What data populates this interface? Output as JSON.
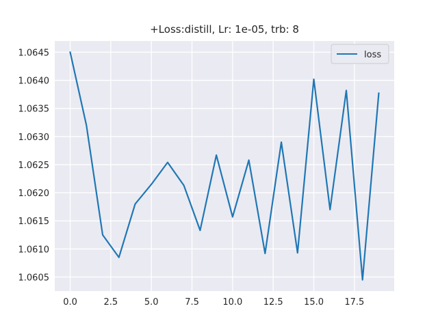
{
  "chart_data": {
    "type": "line",
    "title": "+Loss:distill, Lr: 1e-05, trb: 8",
    "xlabel": "",
    "ylabel": "",
    "xlim": [
      -0.95,
      19.95
    ],
    "ylim": [
      1.06025,
      1.0647
    ],
    "x_ticks": [
      0.0,
      2.5,
      5.0,
      7.5,
      10.0,
      12.5,
      15.0,
      17.5
    ],
    "x_tick_labels": [
      "0.0",
      "2.5",
      "5.0",
      "7.5",
      "10.0",
      "12.5",
      "15.0",
      "17.5"
    ],
    "y_ticks": [
      1.0605,
      1.061,
      1.0615,
      1.062,
      1.0625,
      1.063,
      1.0635,
      1.064,
      1.0645
    ],
    "y_tick_labels": [
      "1.0605",
      "1.0610",
      "1.0615",
      "1.0620",
      "1.0625",
      "1.0630",
      "1.0635",
      "1.0640",
      "1.0645"
    ],
    "grid": true,
    "legend_position": "upper-right",
    "series": [
      {
        "name": "loss",
        "color": "#1f77b4",
        "x": [
          0,
          1,
          2,
          3,
          4,
          5,
          6,
          7,
          8,
          9,
          10,
          11,
          12,
          13,
          14,
          15,
          16,
          17,
          18,
          19
        ],
        "y": [
          1.0645,
          1.0632,
          1.06125,
          1.06085,
          1.0618,
          1.06215,
          1.06254,
          1.06213,
          1.06133,
          1.06267,
          1.06157,
          1.06258,
          1.06092,
          1.0629,
          1.06093,
          1.06402,
          1.0617,
          1.06382,
          1.06045,
          1.06377
        ]
      }
    ]
  }
}
